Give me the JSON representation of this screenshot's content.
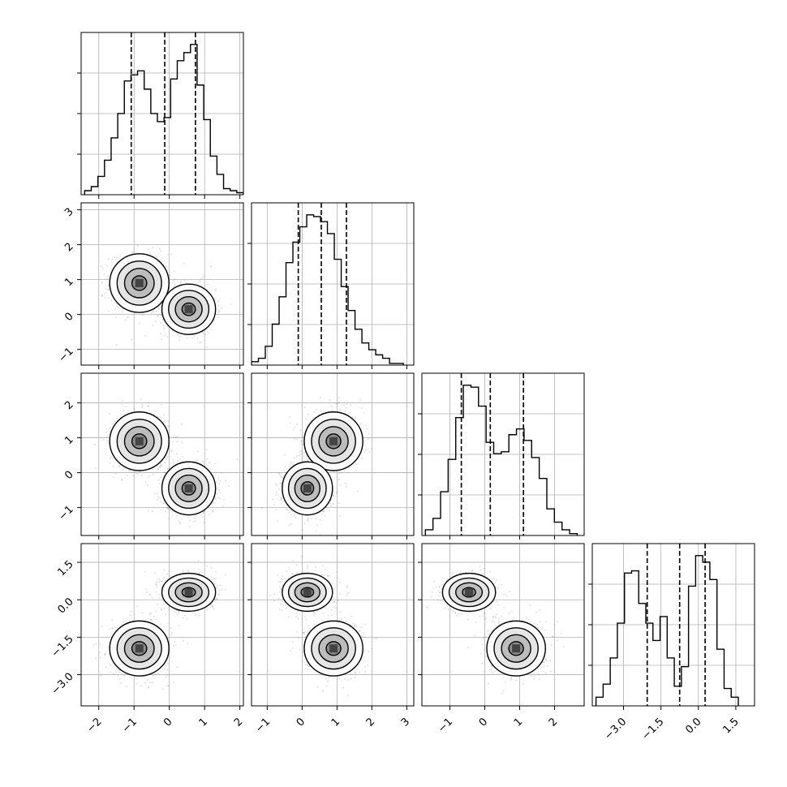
{
  "chart_data": {
    "type": "corner",
    "dimensions": 4,
    "grid": true,
    "axis_ranges": [
      [
        -2.5,
        2.1
      ],
      [
        -1.45,
        3.2
      ],
      [
        -1.8,
        2.85
      ],
      [
        -4.25,
        2.25
      ]
    ],
    "ticks": [
      {
        "values": [
          -2,
          -1,
          0,
          1,
          2
        ],
        "labels": [
          "−2",
          "−1",
          "0",
          "1",
          "2"
        ]
      },
      {
        "values": [
          -1,
          0,
          1,
          2,
          3
        ],
        "labels": [
          "−1",
          "0",
          "1",
          "2",
          "3"
        ]
      },
      {
        "values": [
          -1,
          0,
          1,
          2
        ],
        "labels": [
          "−1",
          "0",
          "1",
          "2"
        ]
      },
      {
        "values": [
          -3.0,
          -1.5,
          0.0,
          1.5
        ],
        "labels": [
          "−3.0",
          "−1.5",
          "0.0",
          "1.5"
        ]
      }
    ],
    "quantiles": [
      [
        -1.08,
        -0.13,
        0.74
      ],
      [
        -0.11,
        0.55,
        1.27
      ],
      [
        -0.67,
        0.16,
        1.11
      ],
      [
        -2.05,
        -0.75,
        0.27
      ]
    ],
    "histograms": [
      {
        "bins": [
          -2.4,
          2.1
        ],
        "counts": [
          2,
          4,
          9,
          17,
          28,
          40,
          56,
          59,
          61,
          52,
          40,
          36,
          38,
          57,
          66,
          70,
          74,
          54,
          37,
          19,
          10,
          3,
          2,
          1
        ]
      },
      {
        "bins": [
          -1.45,
          2.9
        ],
        "counts": [
          2,
          4,
          11,
          24,
          40,
          60,
          72,
          81,
          88,
          87,
          84,
          77,
          62,
          46,
          32,
          21,
          13,
          9,
          6,
          4,
          1,
          1
        ]
      },
      {
        "bins": [
          -1.7,
          2.65
        ],
        "counts": [
          3,
          9,
          23,
          40,
          62,
          79,
          78,
          68,
          49,
          43,
          44,
          53,
          56,
          50,
          41,
          30,
          14,
          7,
          3,
          1
        ]
      },
      {
        "bins": [
          -4.1,
          1.6
        ],
        "counts": [
          4,
          10,
          22,
          38,
          61,
          62,
          47,
          38,
          30,
          41,
          22,
          9,
          18,
          55,
          69,
          66,
          58,
          26,
          8,
          4
        ]
      }
    ],
    "clusters": [
      {
        "means": [
          -0.85,
          0.9,
          0.9,
          -1.95
        ],
        "spreads": [
          0.42,
          0.42,
          0.42,
          0.55
        ]
      },
      {
        "means": [
          0.55,
          0.15,
          -0.45,
          0.3
        ],
        "spreads": [
          0.38,
          0.36,
          0.38,
          0.38
        ]
      }
    ]
  }
}
